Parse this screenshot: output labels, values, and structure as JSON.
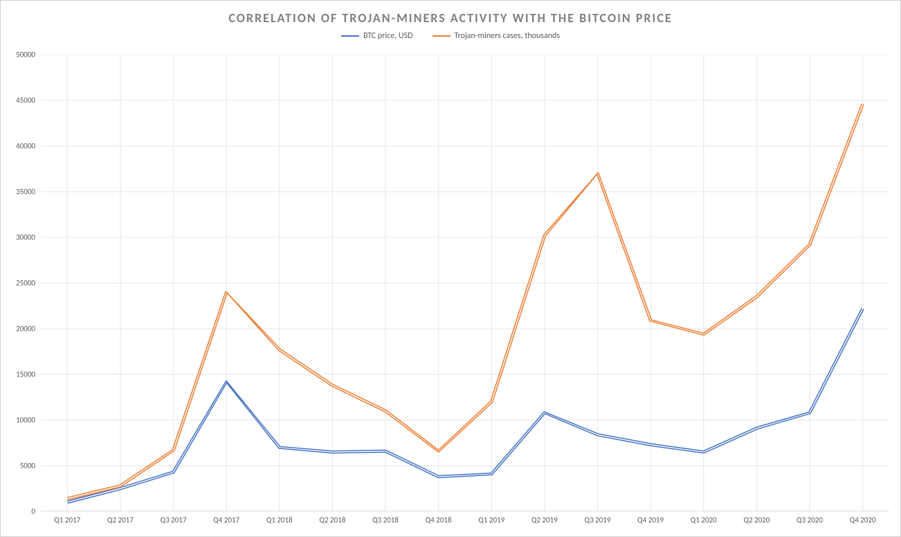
{
  "chart": {
    "type": "line",
    "title": "CORRELATION OF TROJAN-MINERS ACTIVITY WITH THE BITCOIN PRICE",
    "title_color": "#7f7f7f",
    "title_fontsize": 18,
    "title_letter_spacing": 2,
    "background_color": "#ffffff",
    "border_color": "#d0d0d0",
    "grid_color": "#e6e6e6",
    "axis_line_color": "#bfbfbf",
    "label_color": "#595959",
    "label_fontsize": 11,
    "ylim": [
      0,
      50000
    ],
    "ytick_step": 5000,
    "yticks": [
      0,
      5000,
      10000,
      15000,
      20000,
      25000,
      30000,
      35000,
      40000,
      45000,
      50000
    ],
    "categories": [
      "Q1 2017",
      "Q2 2017",
      "Q3 2017",
      "Q4 2017",
      "Q1 2018",
      "Q2 2018",
      "Q3 2018",
      "Q4 2018",
      "Q1 2019",
      "Q2 2019",
      "Q3 2019",
      "Q4 2019",
      "Q1 2020",
      "Q2 2020",
      "Q3 2020",
      "Q4 2020"
    ],
    "series": [
      {
        "name": "BTC price, USD",
        "color": "#4472c4",
        "line_style": "double",
        "line_width": 1.5,
        "gap": 3,
        "values": [
          1000,
          2500,
          4300,
          14200,
          7000,
          6500,
          6600,
          3800,
          4100,
          10800,
          8400,
          7300,
          6500,
          9100,
          10800,
          22200
        ]
      },
      {
        "name": "Trojan-miners cases, thousands",
        "color": "#ed7d31",
        "line_style": "double",
        "line_width": 1.5,
        "gap": 3,
        "values": [
          1400,
          2800,
          6700,
          24000,
          17700,
          13800,
          11000,
          6600,
          12000,
          30200,
          37000,
          20900,
          19400,
          23500,
          29200,
          44600
        ]
      }
    ],
    "legend": {
      "position": "top",
      "fontsize": 12
    }
  }
}
